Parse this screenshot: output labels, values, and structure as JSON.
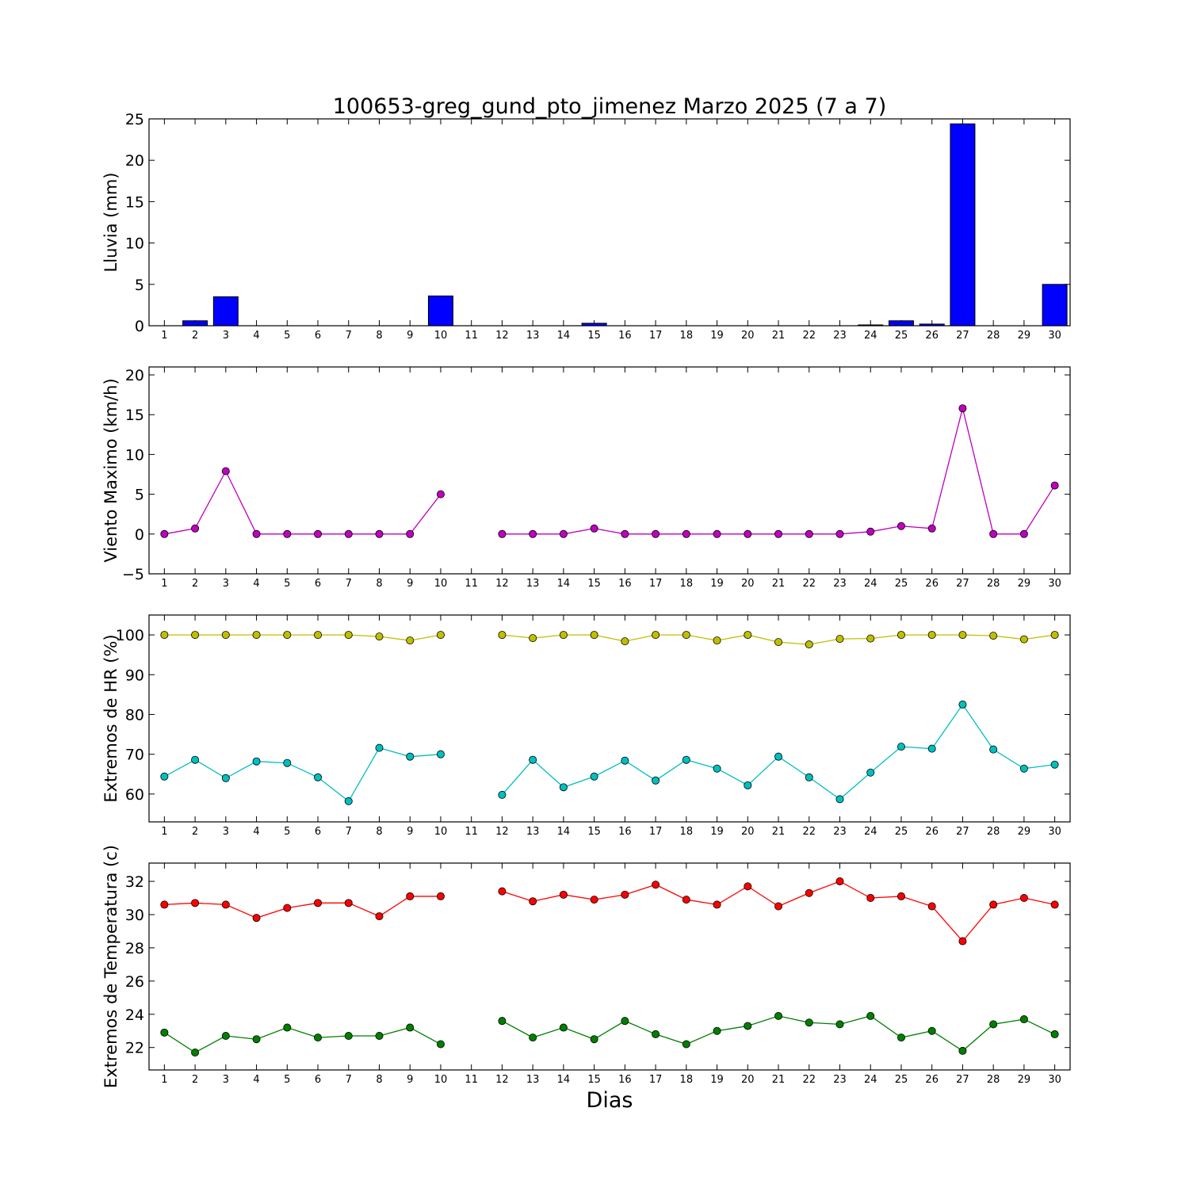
{
  "title": "100653-greg_gund_pto_jimenez Marzo 2025  (7 a 7)",
  "xlabel": "Dias",
  "chart_data": [
    {
      "type": "bar",
      "ylabel": "Lluvia (mm)",
      "xlim": [
        0.5,
        30.5
      ],
      "ylim": [
        0,
        25
      ],
      "yticks": [
        0,
        5,
        10,
        15,
        20,
        25
      ],
      "xticks": [
        1,
        2,
        3,
        4,
        5,
        6,
        7,
        8,
        9,
        10,
        11,
        12,
        13,
        14,
        15,
        16,
        17,
        18,
        19,
        20,
        21,
        22,
        23,
        24,
        25,
        26,
        27,
        28,
        29,
        30
      ],
      "series": [
        {
          "color": "#0000ff",
          "x": [
            1,
            2,
            3,
            4,
            5,
            6,
            7,
            8,
            9,
            10,
            12,
            13,
            14,
            15,
            16,
            17,
            18,
            19,
            20,
            21,
            22,
            23,
            24,
            25,
            26,
            27,
            28,
            29,
            30
          ],
          "values": [
            0,
            0.6,
            3.5,
            0,
            0,
            0,
            0,
            0,
            0,
            3.6,
            0,
            0,
            0,
            0.3,
            0,
            0,
            0,
            0,
            0,
            0,
            0,
            0,
            0.1,
            0.6,
            0.2,
            24.4,
            0,
            0,
            5.0
          ]
        }
      ]
    },
    {
      "type": "line",
      "ylabel": "Viento Maximo (km/h)",
      "xlim": [
        0.5,
        30.5
      ],
      "ylim": [
        -5,
        21
      ],
      "yticks": [
        -5,
        0,
        5,
        10,
        15,
        20
      ],
      "xticks": [
        1,
        2,
        3,
        4,
        5,
        6,
        7,
        8,
        9,
        10,
        11,
        12,
        13,
        14,
        15,
        16,
        17,
        18,
        19,
        20,
        21,
        22,
        23,
        24,
        25,
        26,
        27,
        28,
        29,
        30
      ],
      "series": [
        {
          "color": "#bf00bf",
          "x": [
            1,
            2,
            3,
            4,
            5,
            6,
            7,
            8,
            9,
            10,
            null,
            12,
            13,
            14,
            15,
            16,
            17,
            18,
            19,
            20,
            21,
            22,
            23,
            24,
            25,
            26,
            27,
            28,
            29,
            30
          ],
          "values": [
            0,
            0.7,
            7.9,
            0,
            0,
            0,
            0,
            0,
            0,
            5.0,
            null,
            0,
            0,
            0,
            0.7,
            0,
            0,
            0,
            0,
            0,
            0,
            0,
            0,
            0.3,
            1.0,
            0.7,
            15.8,
            0,
            0,
            6.1
          ]
        }
      ]
    },
    {
      "type": "line",
      "ylabel": "Extremos de HR (%)",
      "xlim": [
        0.5,
        30.5
      ],
      "ylim": [
        53,
        105
      ],
      "yticks": [
        60,
        70,
        80,
        90,
        100
      ],
      "xticks": [
        1,
        2,
        3,
        4,
        5,
        6,
        7,
        8,
        9,
        10,
        11,
        12,
        13,
        14,
        15,
        16,
        17,
        18,
        19,
        20,
        21,
        22,
        23,
        24,
        25,
        26,
        27,
        28,
        29,
        30
      ],
      "series": [
        {
          "color": "#bfbf00",
          "x": [
            1,
            2,
            3,
            4,
            5,
            6,
            7,
            8,
            9,
            10,
            null,
            12,
            13,
            14,
            15,
            16,
            17,
            18,
            19,
            20,
            21,
            22,
            23,
            24,
            25,
            26,
            27,
            28,
            29,
            30
          ],
          "values": [
            100,
            100,
            100,
            100,
            100,
            100,
            100,
            99.6,
            98.6,
            100,
            null,
            100,
            99.2,
            100,
            100,
            98.4,
            100,
            100,
            98.6,
            100,
            98.2,
            97.6,
            99.0,
            99.1,
            100,
            100,
            100,
            99.8,
            98.9,
            100
          ]
        },
        {
          "color": "#00bfbf",
          "x": [
            1,
            2,
            3,
            4,
            5,
            6,
            7,
            8,
            9,
            10,
            null,
            12,
            13,
            14,
            15,
            16,
            17,
            18,
            19,
            20,
            21,
            22,
            23,
            24,
            25,
            26,
            27,
            28,
            29,
            30
          ],
          "values": [
            64.4,
            68.6,
            64.0,
            68.2,
            67.8,
            64.2,
            58.2,
            71.6,
            69.4,
            70.0,
            null,
            59.8,
            68.6,
            61.7,
            64.4,
            68.4,
            63.4,
            68.6,
            66.4,
            62.2,
            69.4,
            64.2,
            58.7,
            65.4,
            71.9,
            71.4,
            82.5,
            71.2,
            66.4,
            67.4
          ]
        }
      ]
    },
    {
      "type": "line",
      "ylabel": "Extremos de Temperatura (c)",
      "xlim": [
        0.5,
        30.5
      ],
      "ylim": [
        20.65,
        33.1
      ],
      "yticks": [
        22,
        24,
        26,
        28,
        30,
        32
      ],
      "xticks": [
        1,
        2,
        3,
        4,
        5,
        6,
        7,
        8,
        9,
        10,
        11,
        12,
        13,
        14,
        15,
        16,
        17,
        18,
        19,
        20,
        21,
        22,
        23,
        24,
        25,
        26,
        27,
        28,
        29,
        30
      ],
      "series": [
        {
          "color": "#ff0000",
          "x": [
            1,
            2,
            3,
            4,
            5,
            6,
            7,
            8,
            9,
            10,
            null,
            12,
            13,
            14,
            15,
            16,
            17,
            18,
            19,
            20,
            21,
            22,
            23,
            24,
            25,
            26,
            27,
            28,
            29,
            30
          ],
          "values": [
            30.6,
            30.7,
            30.6,
            29.8,
            30.4,
            30.7,
            30.7,
            29.9,
            31.1,
            31.1,
            null,
            31.4,
            30.8,
            31.2,
            30.9,
            31.2,
            31.8,
            30.9,
            30.6,
            31.7,
            30.5,
            31.3,
            32.0,
            31.0,
            31.1,
            30.5,
            28.4,
            30.6,
            31.0,
            30.6
          ]
        },
        {
          "color": "#007f00",
          "x": [
            1,
            2,
            3,
            4,
            5,
            6,
            7,
            8,
            9,
            10,
            null,
            12,
            13,
            14,
            15,
            16,
            17,
            18,
            19,
            20,
            21,
            22,
            23,
            24,
            25,
            26,
            27,
            28,
            29,
            30
          ],
          "values": [
            22.9,
            21.7,
            22.7,
            22.5,
            23.2,
            22.6,
            22.7,
            22.7,
            23.2,
            22.2,
            null,
            23.6,
            22.6,
            23.2,
            22.5,
            23.6,
            22.8,
            22.2,
            23.0,
            23.3,
            23.9,
            23.5,
            23.4,
            23.9,
            22.6,
            23.0,
            21.8,
            23.4,
            23.7,
            22.8
          ]
        }
      ]
    }
  ]
}
